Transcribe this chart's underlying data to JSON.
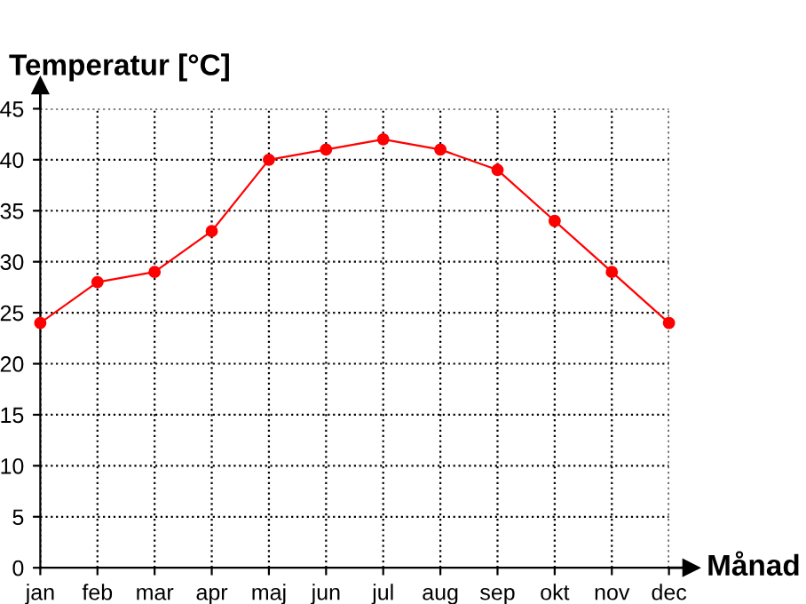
{
  "chart_data": {
    "type": "line",
    "ylabel": "Temperatur [°C]",
    "xlabel": "Månad",
    "categories": [
      "jan",
      "feb",
      "mar",
      "apr",
      "maj",
      "jun",
      "jul",
      "aug",
      "sep",
      "okt",
      "nov",
      "dec"
    ],
    "series": [
      {
        "color": "#ff0000",
        "values": [
          24,
          28,
          29,
          33,
          40,
          41,
          42,
          41,
          39,
          34,
          29,
          24
        ]
      }
    ],
    "ylim": [
      0,
      45
    ],
    "yticks": [
      0,
      5,
      10,
      15,
      20,
      25,
      30,
      35,
      40,
      45
    ],
    "grid": true,
    "marker": "circle",
    "line_style": "solid",
    "legend": false
  }
}
